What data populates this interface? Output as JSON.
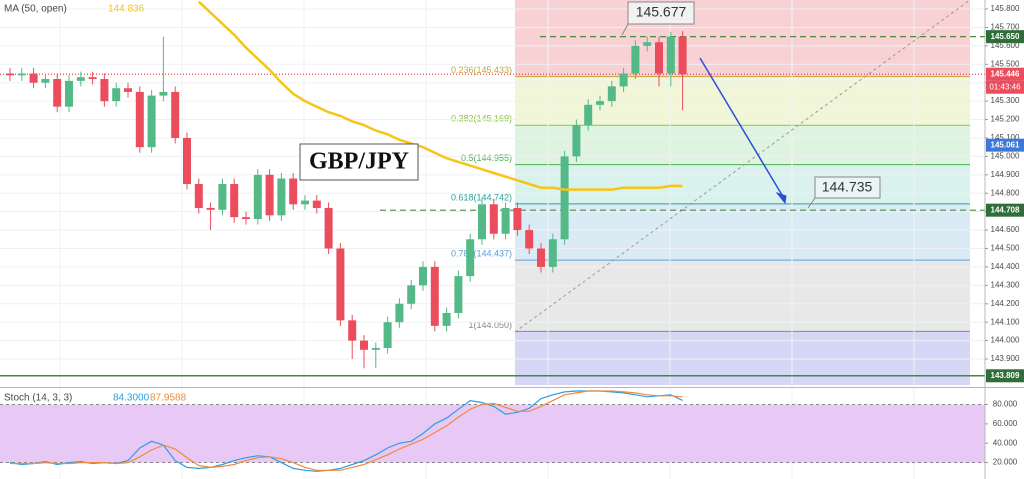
{
  "chart_data": [
    {
      "type": "candlestick",
      "title": "GBP/JPY",
      "indicator": {
        "name": "MA (50, open)",
        "value_label": "144.836",
        "color": "#f5c518"
      },
      "ylim": [
        143.759,
        145.849
      ],
      "yticks": [
        {
          "value": 143.9,
          "label": "143.900"
        },
        {
          "value": 144.0,
          "label": "144.000"
        },
        {
          "value": 144.1,
          "label": "144.100"
        },
        {
          "value": 144.2,
          "label": "144.200"
        },
        {
          "value": 144.3,
          "label": "144.300"
        },
        {
          "value": 144.4,
          "label": "144.400"
        },
        {
          "value": 144.5,
          "label": "144.500"
        },
        {
          "value": 144.6,
          "label": "144.600"
        },
        {
          "value": 144.7,
          "label": "144.700"
        },
        {
          "value": 144.8,
          "label": "144.800"
        },
        {
          "value": 144.9,
          "label": "144.900"
        },
        {
          "value": 145.0,
          "label": "145.000"
        },
        {
          "value": 145.1,
          "label": "145.100"
        },
        {
          "value": 145.2,
          "label": "145.200"
        },
        {
          "value": 145.3,
          "label": "145.300"
        },
        {
          "value": 145.4,
          "label": "145.400"
        },
        {
          "value": 145.5,
          "label": "145.500"
        },
        {
          "value": 145.6,
          "label": "145.600"
        },
        {
          "value": 145.7,
          "label": "145.700"
        },
        {
          "value": 145.8,
          "label": "145.800"
        }
      ],
      "grid": true,
      "up_color": "#53b987",
      "down_color": "#eb4d5c",
      "open": [
        145.45,
        145.44,
        145.45,
        145.4,
        145.42,
        145.27,
        145.41,
        145.43,
        145.42,
        145.3,
        145.37,
        145.35,
        145.05,
        145.33,
        145.35,
        145.1,
        144.85,
        144.72,
        144.71,
        144.85,
        144.67,
        144.66,
        144.9,
        144.68,
        144.88,
        144.74,
        144.76,
        144.72,
        144.5,
        144.11,
        144.0,
        143.95,
        143.96,
        144.1,
        144.2,
        144.3,
        144.4,
        144.08,
        144.15,
        144.35,
        144.55,
        144.74,
        144.58,
        144.72,
        144.6,
        144.5,
        144.4,
        144.55,
        145.0,
        145.17,
        145.28,
        145.3,
        145.38,
        145.45,
        145.6,
        145.62,
        145.45,
        145.65
      ],
      "high": [
        145.48,
        145.48,
        145.48,
        145.45,
        145.45,
        145.44,
        145.46,
        145.46,
        145.45,
        145.4,
        145.4,
        145.38,
        145.36,
        145.65,
        145.38,
        145.13,
        144.88,
        144.75,
        144.88,
        144.88,
        144.7,
        144.93,
        144.93,
        144.91,
        144.91,
        144.79,
        144.79,
        144.75,
        144.53,
        144.14,
        144.03,
        143.99,
        144.13,
        144.23,
        144.33,
        144.43,
        144.43,
        144.18,
        144.38,
        144.58,
        144.77,
        144.77,
        144.75,
        144.75,
        144.63,
        144.53,
        144.58,
        145.03,
        145.2,
        145.31,
        145.33,
        145.41,
        145.48,
        145.63,
        145.65,
        145.65,
        145.677,
        145.68
      ],
      "low": [
        145.41,
        145.41,
        145.37,
        145.37,
        145.24,
        145.24,
        145.38,
        145.39,
        145.27,
        145.27,
        145.32,
        145.02,
        145.02,
        145.3,
        145.07,
        144.82,
        144.69,
        144.6,
        144.68,
        144.64,
        144.63,
        144.63,
        144.65,
        144.65,
        144.71,
        144.71,
        144.69,
        144.47,
        144.08,
        143.9,
        143.85,
        143.85,
        143.93,
        144.07,
        144.17,
        144.27,
        144.05,
        144.05,
        144.12,
        144.32,
        144.52,
        144.55,
        144.55,
        144.57,
        144.47,
        144.37,
        144.37,
        144.52,
        144.97,
        145.14,
        145.25,
        145.27,
        145.35,
        145.42,
        145.57,
        145.38,
        145.38,
        145.25
      ],
      "close": [
        145.44,
        145.45,
        145.4,
        145.42,
        145.27,
        145.41,
        145.43,
        145.42,
        145.3,
        145.37,
        145.35,
        145.05,
        145.33,
        145.35,
        145.1,
        144.85,
        144.72,
        144.71,
        144.85,
        144.67,
        144.66,
        144.9,
        144.68,
        144.88,
        144.74,
        144.76,
        144.72,
        144.5,
        144.11,
        144.0,
        143.95,
        143.96,
        144.1,
        144.2,
        144.3,
        144.4,
        144.08,
        144.15,
        144.35,
        144.55,
        144.74,
        144.58,
        144.72,
        144.6,
        144.5,
        144.4,
        144.55,
        145.0,
        145.17,
        145.28,
        145.3,
        145.38,
        145.45,
        145.6,
        145.62,
        145.45,
        145.65,
        145.446
      ],
      "ma": [
        null,
        null,
        null,
        null,
        null,
        null,
        null,
        null,
        null,
        null,
        null,
        null,
        null,
        null,
        null,
        null,
        145.84,
        145.78,
        145.72,
        145.66,
        145.59,
        145.53,
        145.47,
        145.4,
        145.34,
        145.3,
        145.27,
        145.24,
        145.22,
        145.19,
        145.17,
        145.14,
        145.12,
        145.09,
        145.07,
        145.05,
        145.02,
        144.99,
        144.97,
        144.95,
        144.93,
        144.91,
        144.89,
        144.87,
        144.85,
        144.83,
        144.83,
        144.82,
        144.82,
        144.82,
        144.82,
        144.82,
        144.83,
        144.83,
        144.83,
        144.83,
        144.84,
        144.84
      ],
      "fib_levels": [
        {
          "value": 145.433,
          "label": "0.236(145.433)",
          "color": "#c9a23c"
        },
        {
          "value": 145.169,
          "label": "0.382(145.169)",
          "color": "#8bc34a"
        },
        {
          "value": 144.955,
          "label": "0.5(144.955)",
          "color": "#4caf50"
        },
        {
          "value": 144.742,
          "label": "0.618(144.742)",
          "color": "#26a69a"
        },
        {
          "value": 144.437,
          "label": "0.786(144.437)",
          "color": "#5c9fd6"
        },
        {
          "value": 144.05,
          "label": "1(144.050)",
          "color": "#888888"
        }
      ],
      "fib_colors": [
        "#f6c9cb",
        "#eef5d2",
        "#d8f2dc",
        "#d2f0ea",
        "#d5e8f5",
        "#e4e4e4",
        "#cfd0f5"
      ],
      "hlines": [
        {
          "value": 145.65,
          "color": "#4c8a3c",
          "style": "dashed"
        },
        {
          "value": 145.446,
          "color": "#e05050",
          "style": "dotted"
        },
        {
          "value": 144.708,
          "color": "#4c8a3c",
          "style": "dashed"
        },
        {
          "value": 143.809,
          "color": "#3e8a3e",
          "style": "solid"
        }
      ],
      "price_tags": [
        {
          "value": 145.65,
          "label": "145.650",
          "color": "#2f6d39"
        },
        {
          "value": 145.446,
          "label": "145.446",
          "color": "#eb4d5c"
        },
        {
          "value": 145.061,
          "label": "145.061",
          "color": "#3c78d8"
        },
        {
          "value": 144.708,
          "label": "144.708",
          "color": "#2f6d39"
        },
        {
          "value": 143.809,
          "label": "143.809",
          "color": "#2f6d39"
        }
      ],
      "countdown": "01:43:46",
      "annotations": [
        {
          "value": 145.677,
          "label": "145.677"
        },
        {
          "value": 144.735,
          "label": "144.735"
        }
      ]
    },
    {
      "type": "line",
      "title": "Stoch (14, 3, 3)",
      "ylim": [
        3,
        95
      ],
      "yticks": [
        {
          "value": 20,
          "label": "20.000"
        },
        {
          "value": 40,
          "label": "40.000"
        },
        {
          "value": 60,
          "label": "60.000"
        },
        {
          "value": 80,
          "label": "80.000"
        }
      ],
      "band": [
        20,
        80
      ],
      "band_color": "#e8c9f5",
      "series": [
        {
          "name": "84.3000",
          "color": "#2b9fe0",
          "values": [
            20,
            18,
            19,
            21,
            18,
            20,
            21,
            19,
            20,
            19,
            22,
            35,
            42,
            38,
            22,
            15,
            14,
            15,
            18,
            22,
            25,
            27,
            26,
            20,
            14,
            12,
            11,
            12,
            14,
            18,
            22,
            28,
            35,
            40,
            42,
            50,
            60,
            66,
            75,
            84,
            82,
            78,
            70,
            72,
            76,
            86,
            90,
            93,
            94,
            94,
            94,
            93,
            92,
            90,
            88,
            89,
            90,
            84.3
          ]
        },
        {
          "name": "87.9588",
          "color": "#f08a3c",
          "values": [
            19,
            19,
            19,
            20,
            19,
            19,
            20,
            20,
            20,
            19,
            20,
            26,
            33,
            38,
            34,
            25,
            17,
            15,
            16,
            18,
            22,
            25,
            26,
            24,
            20,
            15,
            12,
            12,
            12,
            15,
            18,
            23,
            28,
            34,
            39,
            44,
            51,
            58,
            67,
            75,
            80,
            81,
            77,
            73,
            73,
            78,
            84,
            90,
            92,
            94,
            94,
            94,
            93,
            92,
            90,
            89,
            89,
            87.9588
          ]
        }
      ]
    }
  ]
}
